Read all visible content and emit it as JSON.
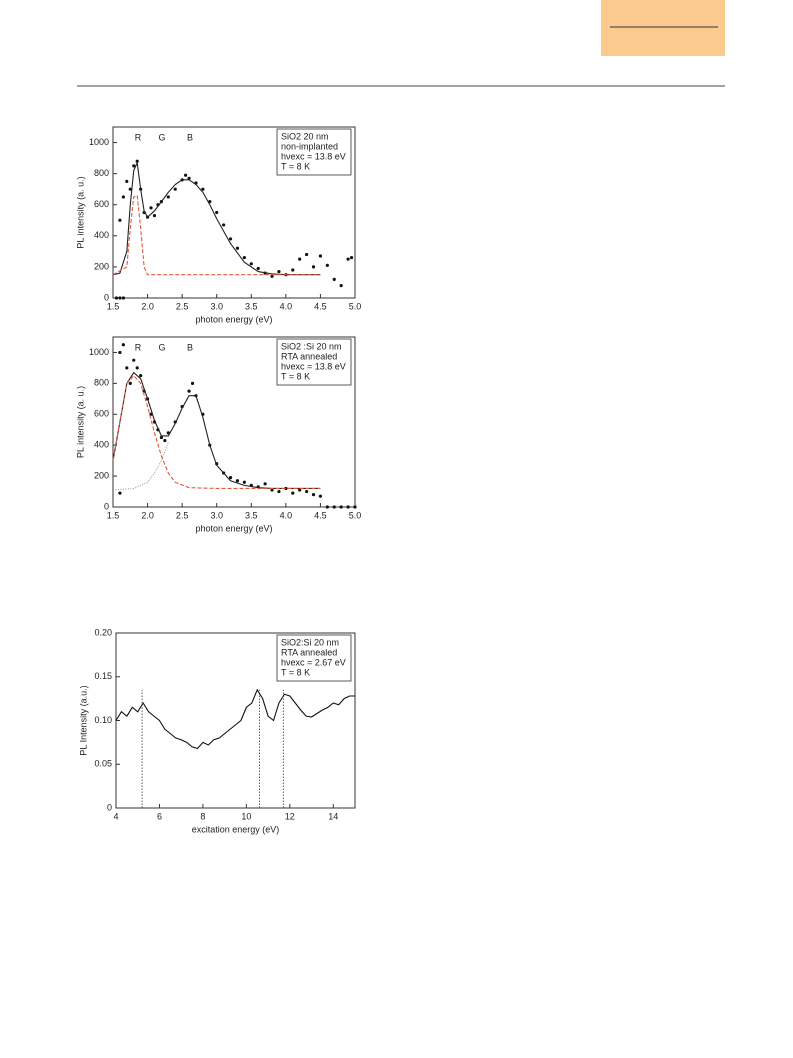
{
  "chart_data": [
    {
      "type": "scatter",
      "xlabel": "photon energy (eV)",
      "ylabel": "PL intensity (a. u.)",
      "xlim": [
        1.5,
        5
      ],
      "ylim": [
        0,
        1100
      ],
      "xticks": [
        1.5,
        {
          "value": 2,
          "label": "2.0"
        },
        2.5,
        {
          "value": 3,
          "label": "3.0"
        },
        3.5,
        {
          "value": 4,
          "label": "4.0"
        },
        4.5,
        {
          "value": 5,
          "label": "5.0"
        }
      ],
      "yticks": [
        0,
        200,
        400,
        600,
        800,
        1000
      ],
      "peak_labels": [
        "R",
        "G",
        "B"
      ],
      "legend_text": [
        "SiO2 20 nm",
        "non-implanted",
        "hνexc = 13.8 eV",
        "T = 8 K"
      ],
      "series": [
        {
          "style": "points",
          "color": "#111111",
          "x": [
            1.55,
            1.6,
            1.65,
            1.6,
            1.65,
            1.7,
            1.75,
            1.8,
            1.85,
            1.9,
            1.95,
            2.0,
            2.05,
            2.1,
            2.15,
            2.2,
            2.3,
            2.4,
            2.5,
            2.55,
            2.6,
            2.7,
            2.8,
            2.9,
            3.0,
            3.1,
            3.2,
            3.3,
            3.4,
            3.5,
            3.6,
            3.7,
            3.8,
            3.9,
            4.0,
            4.1,
            4.2,
            4.3,
            4.4,
            4.5,
            4.6,
            4.7,
            4.8,
            4.9,
            4.95
          ],
          "values": [
            0,
            0,
            0,
            500,
            650,
            750,
            700,
            850,
            880,
            700,
            550,
            520,
            580,
            530,
            600,
            620,
            650,
            700,
            760,
            790,
            770,
            740,
            700,
            620,
            550,
            470,
            380,
            320,
            260,
            220,
            190,
            160,
            140,
            170,
            150,
            180,
            250,
            280,
            200,
            270,
            210,
            120,
            80,
            250,
            260
          ]
        },
        {
          "style": "solid",
          "color": "#222222",
          "x": [
            1.5,
            1.6,
            1.7,
            1.75,
            1.8,
            1.85,
            1.9,
            1.95,
            2.0,
            2.1,
            2.2,
            2.3,
            2.4,
            2.5,
            2.6,
            2.7,
            2.8,
            2.9,
            3.0,
            3.2,
            3.4,
            3.6,
            3.8,
            4.0,
            4.5
          ],
          "values": [
            150,
            160,
            300,
            600,
            820,
            870,
            700,
            560,
            520,
            560,
            620,
            680,
            730,
            760,
            760,
            730,
            680,
            600,
            510,
            350,
            230,
            170,
            155,
            150,
            150
          ]
        },
        {
          "style": "dashed",
          "color": "#e05a3a",
          "x": [
            1.5,
            1.7,
            1.75,
            1.8,
            1.85,
            1.9,
            1.95,
            2.0,
            4.5
          ],
          "values": [
            150,
            200,
            450,
            650,
            660,
            450,
            200,
            150,
            150
          ]
        }
      ]
    },
    {
      "type": "scatter",
      "xlabel": "photon energy (eV)",
      "ylabel": "PL intensity (a. u.)",
      "xlim": [
        1.5,
        5
      ],
      "ylim": [
        0,
        1100
      ],
      "xticks": [
        1.5,
        {
          "value": 2,
          "label": "2.0"
        },
        2.5,
        {
          "value": 3,
          "label": "3.0"
        },
        3.5,
        {
          "value": 4,
          "label": "4.0"
        },
        4.5,
        {
          "value": 5,
          "label": "5.0"
        }
      ],
      "yticks": [
        0,
        200,
        400,
        600,
        800,
        1000
      ],
      "peak_labels": [
        "R",
        "G",
        "B"
      ],
      "legend_text": [
        "SiO2 :Si 20 nm",
        "RTA annealed",
        "hνexc = 13.8 eV",
        "T = 8 K"
      ],
      "series": [
        {
          "style": "points",
          "color": "#111111",
          "x": [
            1.6,
            1.6,
            1.65,
            1.7,
            1.75,
            1.8,
            1.85,
            1.9,
            1.95,
            2.0,
            2.05,
            2.1,
            2.15,
            2.2,
            2.25,
            2.3,
            2.4,
            2.5,
            2.6,
            2.65,
            2.7,
            2.8,
            2.9,
            3.0,
            3.1,
            3.2,
            3.3,
            3.4,
            3.5,
            3.6,
            3.7,
            3.8,
            3.9,
            4.0,
            4.1,
            4.2,
            4.3,
            4.4,
            4.5,
            4.6,
            4.7,
            4.8,
            4.9,
            5.0
          ],
          "values": [
            1000,
            90,
            1050,
            900,
            800,
            950,
            900,
            850,
            750,
            700,
            600,
            550,
            500,
            450,
            430,
            480,
            550,
            650,
            750,
            800,
            720,
            600,
            400,
            280,
            220,
            190,
            170,
            160,
            140,
            130,
            150,
            110,
            100,
            120,
            90,
            110,
            100,
            80,
            70,
            0,
            0,
            0,
            0,
            0
          ]
        },
        {
          "style": "solid",
          "color": "#222222",
          "x": [
            1.5,
            1.6,
            1.7,
            1.8,
            1.9,
            2.0,
            2.1,
            2.2,
            2.3,
            2.4,
            2.5,
            2.6,
            2.7,
            2.8,
            2.9,
            3.0,
            3.2,
            3.4,
            3.6,
            3.8,
            4.0,
            4.5
          ],
          "values": [
            300,
            550,
            800,
            870,
            830,
            700,
            560,
            460,
            460,
            540,
            640,
            720,
            720,
            580,
            400,
            270,
            170,
            140,
            125,
            120,
            120,
            120
          ]
        },
        {
          "style": "dashed",
          "color": "#e05a3a",
          "x": [
            1.5,
            1.6,
            1.7,
            1.8,
            1.9,
            2.0,
            2.1,
            2.2,
            2.3,
            2.4,
            2.6,
            3.0,
            4.5
          ],
          "values": [
            300,
            550,
            800,
            850,
            800,
            650,
            480,
            330,
            220,
            160,
            125,
            120,
            120
          ]
        },
        {
          "style": "dotted",
          "color": "#999999",
          "x": [
            1.5,
            1.8,
            2.0,
            2.1,
            2.2,
            2.3
          ],
          "values": [
            110,
            120,
            160,
            220,
            300,
            420
          ]
        }
      ]
    },
    {
      "type": "line",
      "xlabel": "excitation energy (eV)",
      "ylabel": "PL Intensity (a.u.)",
      "xlim": [
        4,
        15
      ],
      "ylim": [
        0,
        0.2
      ],
      "xticks": [
        4,
        6,
        8,
        10,
        12,
        14
      ],
      "yticks": [
        0,
        0.05,
        {
          "value": 0.1,
          "label": "0.10"
        },
        0.15,
        {
          "value": 0.2,
          "label": "0.20"
        }
      ],
      "legend_text": [
        "SiO2:Si 20 nm",
        "RTA annealed",
        "hνexc = 2.67 eV",
        "T = 8 K"
      ],
      "vlines": [
        5.2,
        10.6,
        11.7
      ],
      "series": [
        {
          "style": "solid",
          "color": "#111111",
          "x": [
            4,
            4.25,
            4.5,
            4.75,
            5,
            5.25,
            5.5,
            5.75,
            6,
            6.25,
            6.5,
            6.75,
            7,
            7.25,
            7.5,
            7.75,
            8,
            8.25,
            8.5,
            8.75,
            9,
            9.25,
            9.5,
            9.75,
            10,
            10.25,
            10.5,
            10.75,
            11,
            11.25,
            11.5,
            11.75,
            12,
            12.25,
            12.5,
            12.75,
            13,
            13.25,
            13.5,
            13.75,
            14,
            14.25,
            14.5,
            14.75,
            15
          ],
          "values": [
            0.1,
            0.11,
            0.105,
            0.115,
            0.11,
            0.12,
            0.11,
            0.105,
            0.1,
            0.09,
            0.085,
            0.08,
            0.078,
            0.075,
            0.07,
            0.068,
            0.075,
            0.072,
            0.078,
            0.08,
            0.085,
            0.09,
            0.095,
            0.1,
            0.115,
            0.12,
            0.135,
            0.125,
            0.105,
            0.1,
            0.12,
            0.13,
            0.128,
            0.12,
            0.112,
            0.105,
            0.104,
            0.108,
            0.112,
            0.115,
            0.12,
            0.118,
            0.125,
            0.128,
            0.128
          ]
        }
      ]
    }
  ]
}
